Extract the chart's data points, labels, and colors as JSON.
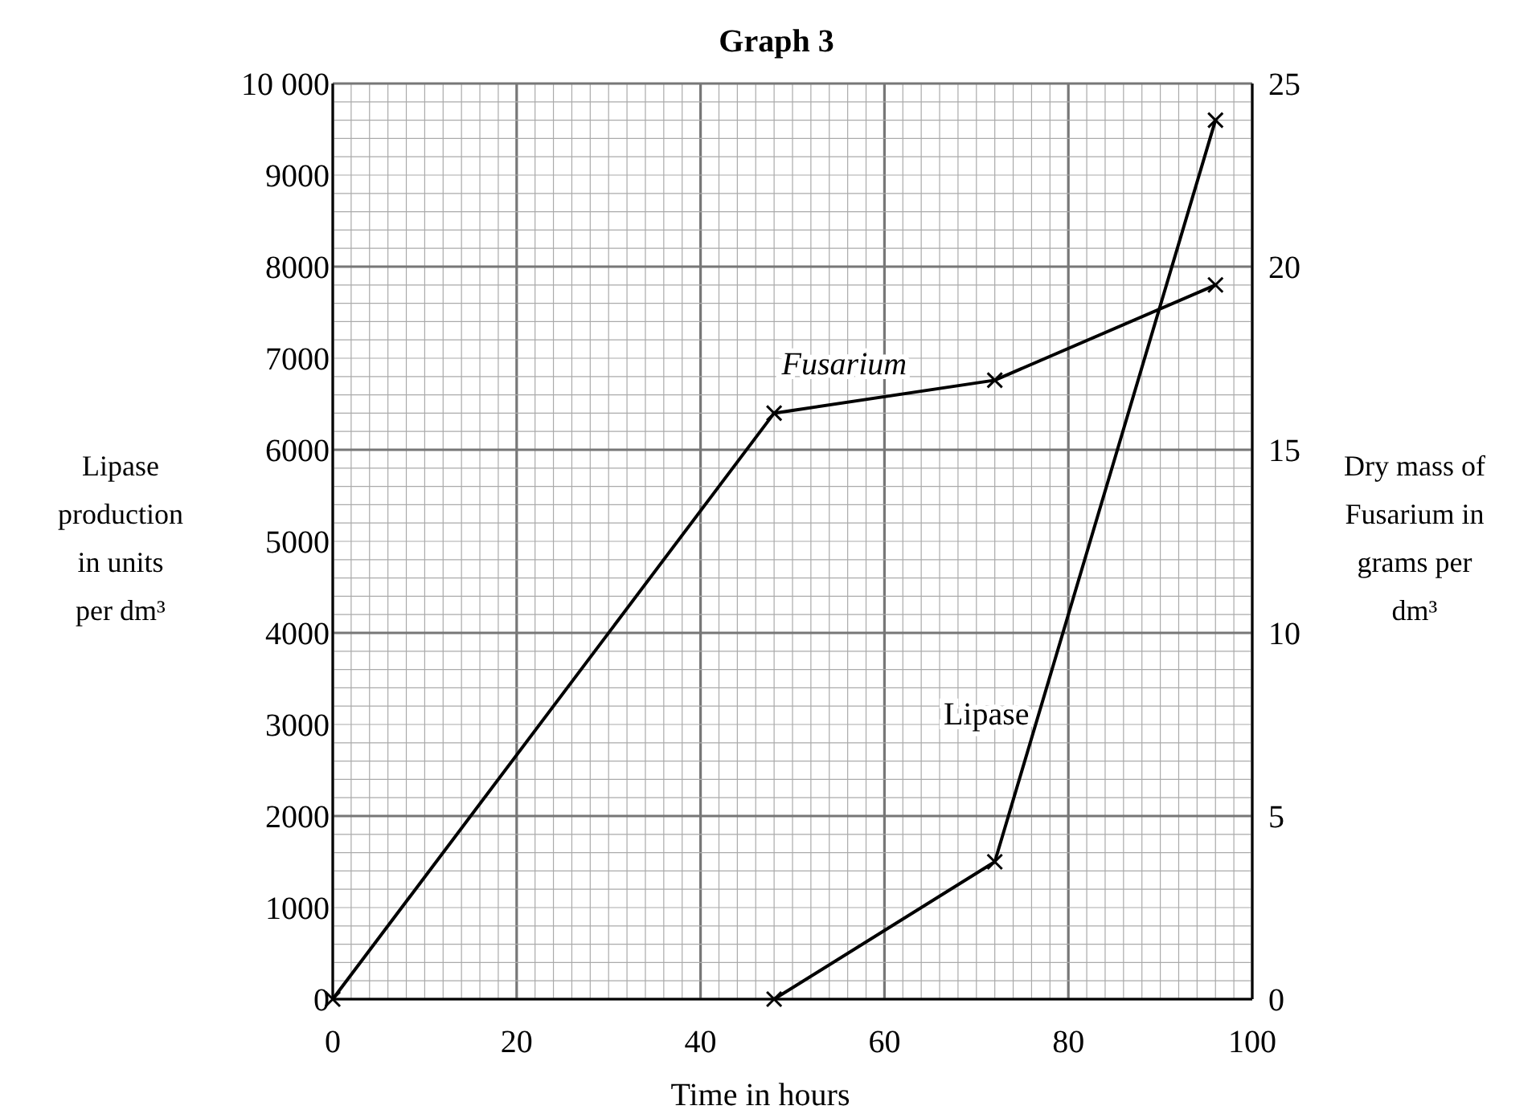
{
  "chart_data": {
    "type": "line",
    "title": "Graph 3",
    "xlabel": "Time in hours",
    "ylabel": "Lipase production in units per dm³",
    "y2label": "Dry mass of Fusarium in grams per dm³",
    "series": [
      {
        "name": "Fusarium",
        "color": "#000000",
        "x": [
          0,
          48,
          72,
          96
        ],
        "values": [
          0,
          16,
          16.9,
          19.5
        ],
        "axis": "y2"
      },
      {
        "name": "Lipase",
        "color": "#000000",
        "x": [
          48,
          72,
          96
        ],
        "values": [
          0,
          1500,
          9600
        ]
      }
    ],
    "xlim": [
      0,
      100
    ],
    "xticks": [
      0,
      20,
      40,
      60,
      80,
      100
    ],
    "ylim": [
      0,
      10000
    ],
    "yticks": [
      0,
      1000,
      2000,
      3000,
      4000,
      5000,
      6000,
      7000,
      8000,
      9000,
      {
        "value": 10000,
        "label": "10 000"
      }
    ],
    "y2lim": [
      0,
      25
    ],
    "y2ticks": [
      0,
      5,
      10,
      15,
      20,
      25
    ],
    "grid": true,
    "marker": "cross",
    "line_style": "solid"
  }
}
